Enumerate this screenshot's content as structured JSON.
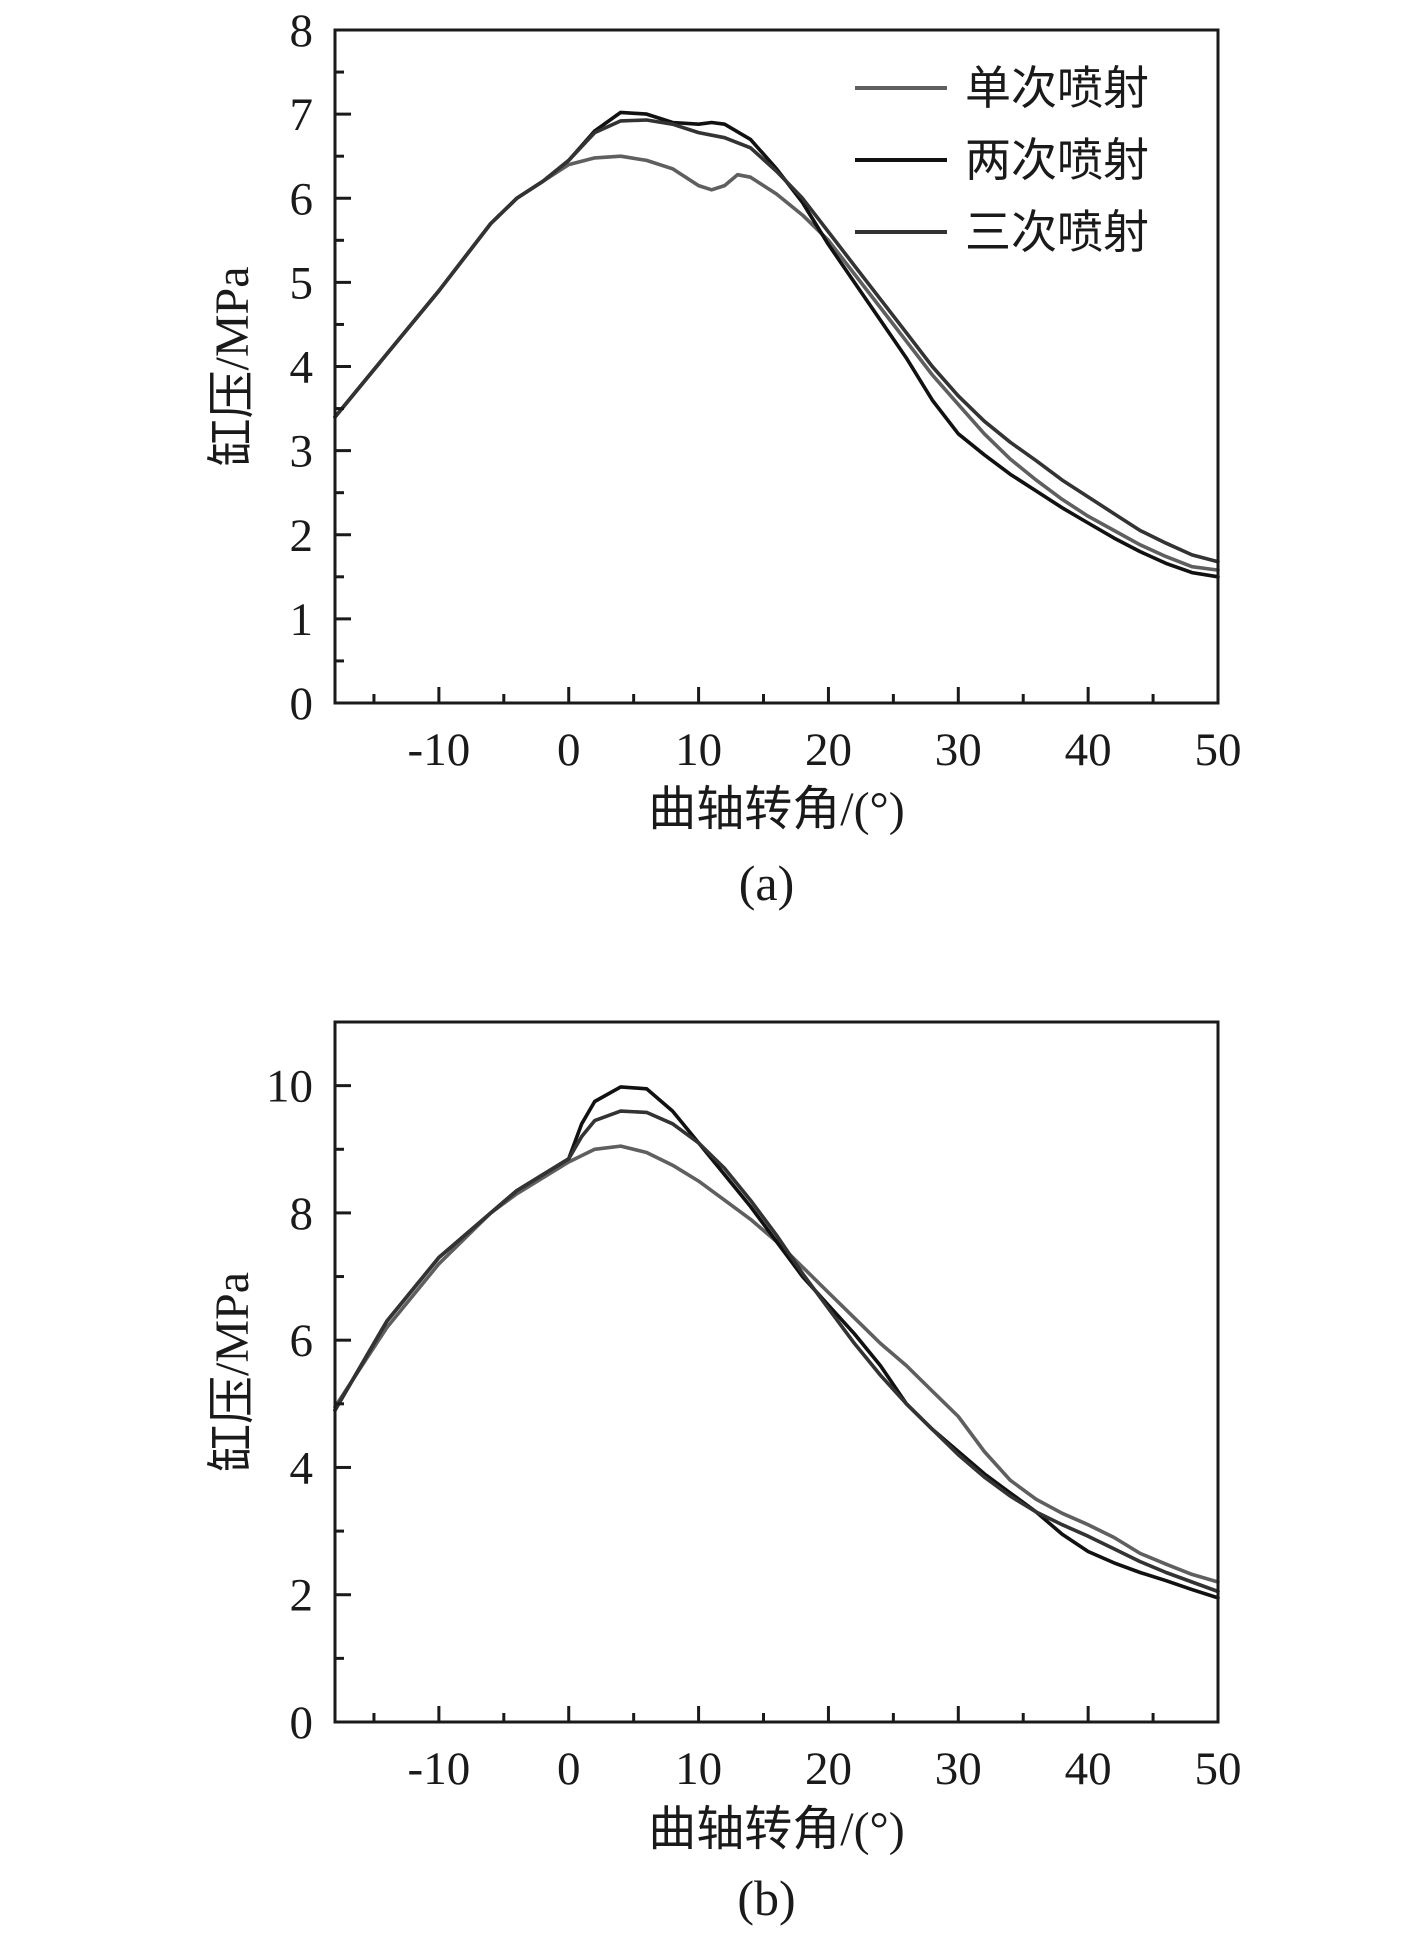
{
  "chart_data": [
    {
      "type": "line",
      "panel_label": "(a)",
      "xlabel": "曲轴转角/(°)",
      "ylabel": "缸压/MPa",
      "xlim": [
        -18,
        50
      ],
      "ylim": [
        0,
        8
      ],
      "xticks": [
        -10,
        0,
        10,
        20,
        30,
        40,
        50
      ],
      "xtick_labels": [
        "-10",
        "0",
        "10",
        "20",
        "30",
        "40",
        "50"
      ],
      "yticks": [
        0,
        1,
        2,
        3,
        4,
        5,
        6,
        7,
        8
      ],
      "ytick_labels": [
        "0",
        "1",
        "2",
        "3",
        "4",
        "5",
        "6",
        "7",
        "8"
      ],
      "x_minor_step": 5,
      "y_minor_step": 0.5,
      "grid": false,
      "legend": "top-right",
      "series": [
        {
          "name": "单次喷射",
          "color": "#5f5f5f",
          "x": [
            -18,
            -14,
            -10,
            -6,
            -4,
            -2,
            0,
            2,
            4,
            6,
            8,
            10,
            11,
            12,
            13,
            14,
            16,
            18,
            20,
            22,
            24,
            26,
            28,
            30,
            32,
            34,
            36,
            38,
            40,
            42,
            44,
            46,
            48,
            50
          ],
          "y": [
            3.4,
            4.15,
            4.9,
            5.7,
            6.0,
            6.2,
            6.4,
            6.48,
            6.5,
            6.45,
            6.35,
            6.15,
            6.1,
            6.15,
            6.28,
            6.25,
            6.05,
            5.8,
            5.5,
            5.1,
            4.7,
            4.3,
            3.9,
            3.55,
            3.2,
            2.9,
            2.65,
            2.42,
            2.22,
            2.05,
            1.88,
            1.74,
            1.62,
            1.58
          ]
        },
        {
          "name": "两次喷射",
          "color": "#111111",
          "x": [
            -18,
            -14,
            -10,
            -6,
            -4,
            -2,
            0,
            2,
            4,
            6,
            8,
            10,
            11,
            12,
            14,
            16,
            18,
            20,
            22,
            24,
            26,
            28,
            30,
            32,
            34,
            36,
            38,
            40,
            42,
            44,
            46,
            48,
            50
          ],
          "y": [
            3.4,
            4.15,
            4.9,
            5.7,
            6.0,
            6.2,
            6.45,
            6.8,
            7.02,
            7.0,
            6.9,
            6.88,
            6.9,
            6.88,
            6.7,
            6.35,
            5.95,
            5.45,
            5.0,
            4.55,
            4.1,
            3.6,
            3.2,
            2.95,
            2.72,
            2.52,
            2.32,
            2.14,
            1.96,
            1.8,
            1.66,
            1.55,
            1.5
          ]
        },
        {
          "name": "三次喷射",
          "color": "#333333",
          "x": [
            -18,
            -14,
            -10,
            -6,
            -4,
            -2,
            0,
            2,
            4,
            6,
            8,
            10,
            12,
            14,
            16,
            18,
            20,
            22,
            24,
            26,
            28,
            30,
            32,
            34,
            36,
            38,
            40,
            42,
            44,
            46,
            48,
            50
          ],
          "y": [
            3.4,
            4.15,
            4.9,
            5.7,
            6.0,
            6.2,
            6.45,
            6.78,
            6.92,
            6.93,
            6.88,
            6.78,
            6.72,
            6.6,
            6.32,
            6.0,
            5.6,
            5.2,
            4.8,
            4.4,
            4.0,
            3.65,
            3.35,
            3.1,
            2.88,
            2.65,
            2.45,
            2.25,
            2.05,
            1.9,
            1.76,
            1.68
          ]
        }
      ]
    },
    {
      "type": "line",
      "panel_label": "(b)",
      "xlabel": "曲轴转角/(°)",
      "ylabel": "缸压/MPa",
      "xlim": [
        -18,
        50
      ],
      "ylim": [
        0,
        11
      ],
      "xticks": [
        -10,
        0,
        10,
        20,
        30,
        40,
        50
      ],
      "xtick_labels": [
        "-10",
        "0",
        "10",
        "20",
        "30",
        "40",
        "50"
      ],
      "yticks": [
        0,
        2,
        4,
        6,
        8,
        10
      ],
      "ytick_labels": [
        "0",
        "2",
        "4",
        "6",
        "8",
        "10"
      ],
      "x_minor_step": 5,
      "y_minor_step": 1,
      "grid": false,
      "legend": "none",
      "series": [
        {
          "name": "单次喷射",
          "color": "#5f5f5f",
          "x": [
            -18,
            -14,
            -10,
            -6,
            -4,
            -2,
            0,
            2,
            4,
            6,
            8,
            10,
            12,
            14,
            16,
            18,
            20,
            22,
            24,
            26,
            28,
            30,
            32,
            34,
            36,
            38,
            40,
            42,
            44,
            46,
            48,
            50
          ],
          "y": [
            4.95,
            6.2,
            7.2,
            8.0,
            8.3,
            8.55,
            8.8,
            9.0,
            9.05,
            8.95,
            8.75,
            8.5,
            8.2,
            7.9,
            7.55,
            7.15,
            6.75,
            6.35,
            5.95,
            5.6,
            5.2,
            4.8,
            4.25,
            3.8,
            3.5,
            3.28,
            3.1,
            2.9,
            2.65,
            2.48,
            2.32,
            2.2
          ]
        },
        {
          "name": "两次喷射",
          "color": "#111111",
          "x": [
            -18,
            -14,
            -10,
            -6,
            -4,
            -2,
            0,
            1,
            2,
            4,
            6,
            8,
            10,
            12,
            14,
            16,
            18,
            20,
            22,
            24,
            26,
            28,
            30,
            32,
            34,
            36,
            38,
            40,
            42,
            44,
            46,
            48,
            50
          ],
          "y": [
            4.9,
            6.3,
            7.3,
            8.0,
            8.35,
            8.6,
            8.85,
            9.4,
            9.75,
            9.98,
            9.95,
            9.6,
            9.1,
            8.6,
            8.1,
            7.55,
            7.0,
            6.55,
            6.1,
            5.6,
            5.0,
            4.6,
            4.25,
            3.9,
            3.6,
            3.3,
            2.95,
            2.68,
            2.5,
            2.35,
            2.22,
            2.08,
            1.95
          ]
        },
        {
          "name": "三次喷射",
          "color": "#333333",
          "x": [
            -18,
            -14,
            -10,
            -6,
            -4,
            -2,
            0,
            1,
            2,
            4,
            6,
            8,
            10,
            12,
            14,
            16,
            18,
            20,
            22,
            24,
            26,
            28,
            30,
            32,
            34,
            36,
            38,
            40,
            42,
            44,
            46,
            48,
            50
          ],
          "y": [
            4.9,
            6.3,
            7.3,
            8.0,
            8.35,
            8.6,
            8.85,
            9.2,
            9.45,
            9.6,
            9.58,
            9.4,
            9.1,
            8.7,
            8.2,
            7.65,
            7.05,
            6.5,
            5.95,
            5.45,
            5.0,
            4.6,
            4.2,
            3.85,
            3.55,
            3.3,
            3.1,
            2.92,
            2.72,
            2.52,
            2.35,
            2.2,
            2.05
          ]
        }
      ]
    }
  ]
}
